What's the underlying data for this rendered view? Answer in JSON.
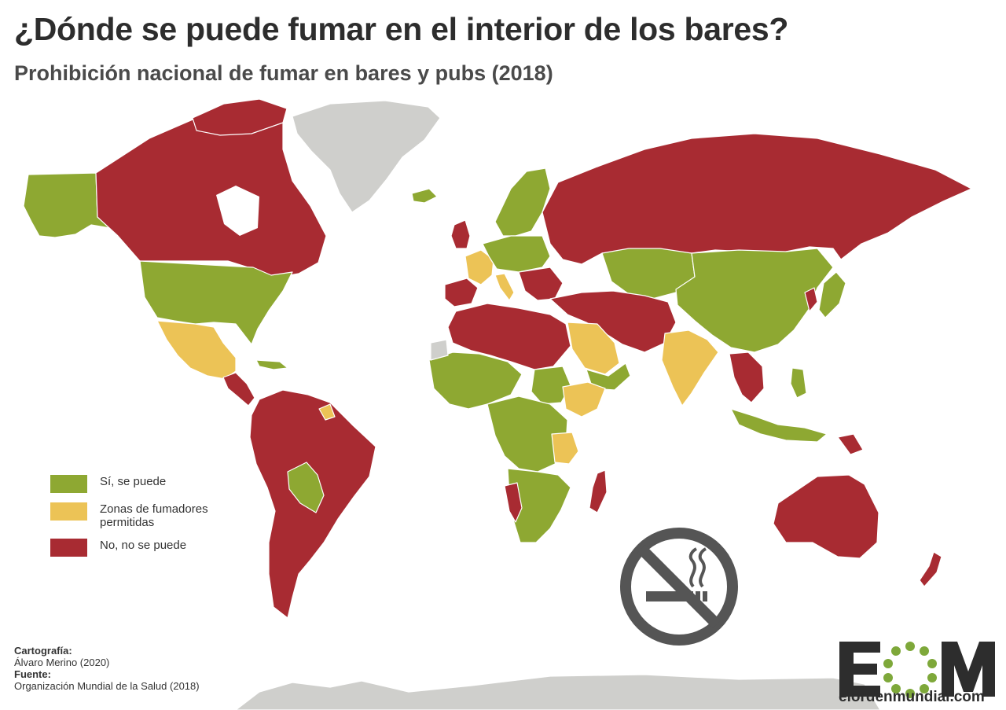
{
  "header": {
    "title": "¿Dónde se puede fumar en el interior de los bares?",
    "subtitle": "Prohibición nacional de fumar en bares y pubs (2018)"
  },
  "colors": {
    "yes": "#8ea832",
    "zones": "#ecc356",
    "no": "#a82b32",
    "no_data": "#cfcfcc",
    "ocean": "#ffffff",
    "icon": "#555555",
    "logo_green": "#7ea83a"
  },
  "legend": {
    "items": [
      {
        "key": "yes",
        "label": "Sí, se puede"
      },
      {
        "key": "zones",
        "label": "Zonas de fumadores permitidas"
      },
      {
        "key": "no",
        "label": "No, no se puede"
      }
    ]
  },
  "credits": {
    "cartography_label": "Cartografía:",
    "cartography_value": "Álvaro Merino (2020)",
    "source_label": "Fuente:",
    "source_value": "Organización Mundial de la Salud (2018)"
  },
  "logo": {
    "letters": "EOM",
    "url": "elordenmundial.com"
  },
  "icons": {
    "no_smoking": "no-smoking-icon"
  }
}
